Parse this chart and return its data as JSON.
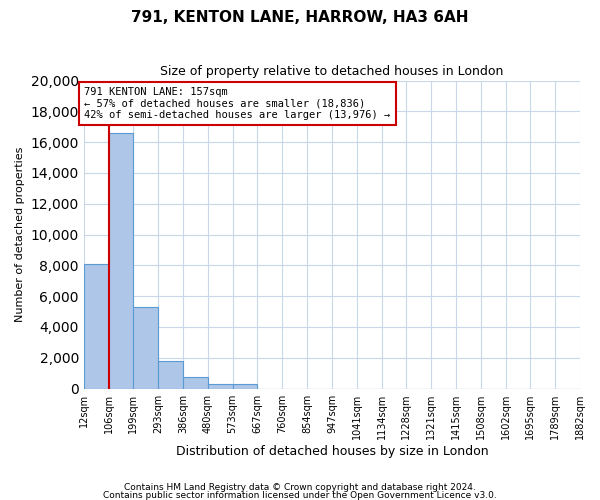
{
  "title": "791, KENTON LANE, HARROW, HA3 6AH",
  "subtitle": "Size of property relative to detached houses in London",
  "xlabel": "Distribution of detached houses by size in London",
  "ylabel": "Number of detached properties",
  "bin_labels": [
    "12sqm",
    "106sqm",
    "199sqm",
    "293sqm",
    "386sqm",
    "480sqm",
    "573sqm",
    "667sqm",
    "760sqm",
    "854sqm",
    "947sqm",
    "1041sqm",
    "1134sqm",
    "1228sqm",
    "1321sqm",
    "1415sqm",
    "1508sqm",
    "1602sqm",
    "1695sqm",
    "1789sqm",
    "1882sqm"
  ],
  "bar_values": [
    8100,
    16600,
    5300,
    1800,
    750,
    280,
    280,
    0,
    0,
    0,
    0,
    0,
    0,
    0,
    0,
    0,
    0,
    0,
    0,
    0
  ],
  "bar_color": "#aec6e8",
  "bar_edge_color": "#5b9bd5",
  "property_line_x": 1,
  "bin_edges": [
    0,
    1,
    2,
    3,
    4,
    5,
    6,
    7,
    8,
    9,
    10,
    11,
    12,
    13,
    14,
    15,
    16,
    17,
    18,
    19,
    20
  ],
  "n_bins": 20,
  "ylim": [
    0,
    20000
  ],
  "yticks": [
    0,
    2000,
    4000,
    6000,
    8000,
    10000,
    12000,
    14000,
    16000,
    18000,
    20000
  ],
  "annotation_title": "791 KENTON LANE: 157sqm",
  "annotation_line1": "← 57% of detached houses are smaller (18,836)",
  "annotation_line2": "42% of semi-detached houses are larger (13,976) →",
  "annotation_box_color": "#ffffff",
  "annotation_box_edge_color": "#cc0000",
  "property_line_color": "#cc0000",
  "footer1": "Contains HM Land Registry data © Crown copyright and database right 2024.",
  "footer2": "Contains public sector information licensed under the Open Government Licence v3.0.",
  "background_color": "#ffffff",
  "grid_color": "#c8d8e8",
  "title_fontsize": 11,
  "subtitle_fontsize": 9,
  "ylabel_fontsize": 8,
  "xlabel_fontsize": 9,
  "tick_fontsize": 7,
  "annotation_fontsize": 7.5,
  "footer_fontsize": 6.5
}
